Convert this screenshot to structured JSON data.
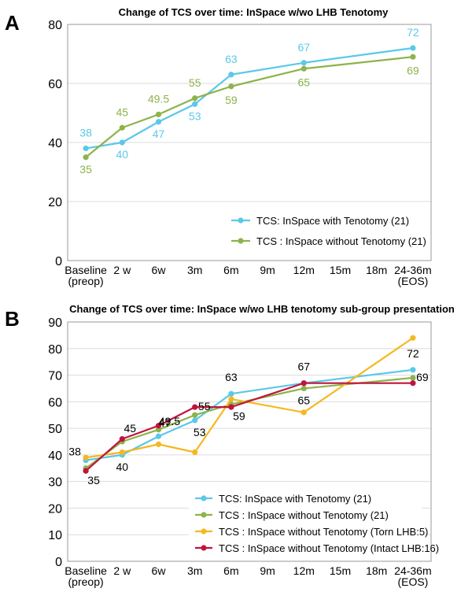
{
  "panel_a_letter": "A",
  "panel_b_letter": "B",
  "chart_data": [
    {
      "type": "line",
      "title": "Change of TCS over time: InSpace w/wo LHB Tenotomy",
      "categories": [
        "Baseline\n(preop)",
        "2 w",
        "6w",
        "3m",
        "6m",
        "9m",
        "12m",
        "15m",
        "18m",
        "24-36m\n(EOS)"
      ],
      "ylim": [
        0,
        80
      ],
      "yticks": [
        0,
        20,
        40,
        60,
        80
      ],
      "grid": "horizontal",
      "legend_position": "bottom-right",
      "series": [
        {
          "name": "TCS: InSpace with Tenotomy (21)",
          "color": "#5bc8e8",
          "x": [
            0,
            1,
            2,
            3,
            4,
            6,
            9
          ],
          "values": [
            38,
            40,
            47,
            53,
            63,
            67,
            72
          ],
          "labels": [
            "38",
            "40",
            "47",
            "53",
            "63",
            "67",
            "72"
          ]
        },
        {
          "name": "TCS : InSpace without Tenotomy (21)",
          "color": "#8db34a",
          "x": [
            0,
            1,
            2,
            3,
            4,
            6,
            9
          ],
          "values": [
            35,
            45,
            49.5,
            55,
            59,
            65,
            69
          ],
          "labels": [
            "35",
            "45",
            "49.5",
            "55",
            "59",
            "65",
            "69"
          ]
        }
      ]
    },
    {
      "type": "line",
      "title": "Change of TCS over time: InSpace w/wo LHB tenotomy sub-group presentation",
      "categories": [
        "Baseline\n(preop)",
        "2 w",
        "6w",
        "3m",
        "6m",
        "9m",
        "12m",
        "15m",
        "18m",
        "24-36m\n(EOS)"
      ],
      "ylim": [
        0,
        90
      ],
      "yticks": [
        0,
        10,
        20,
        30,
        40,
        50,
        60,
        70,
        80,
        90
      ],
      "grid": "horizontal",
      "legend_position": "bottom-left",
      "series": [
        {
          "name": "TCS: InSpace with Tenotomy (21)",
          "color": "#5bc8e8",
          "x": [
            0,
            1,
            2,
            3,
            4,
            6,
            9
          ],
          "values": [
            38,
            40,
            47,
            53,
            63,
            67,
            72
          ],
          "labels": [
            "38",
            "40",
            "47",
            "53",
            "63",
            "",
            "72"
          ]
        },
        {
          "name": "TCS : InSpace without Tenotomy (21)",
          "color": "#8db34a",
          "x": [
            0,
            1,
            2,
            3,
            4,
            6,
            9
          ],
          "values": [
            35,
            45,
            49.5,
            55,
            59,
            65,
            69
          ],
          "labels": [
            "35",
            "45",
            "49.5",
            "55",
            "59",
            "65",
            "69"
          ]
        },
        {
          "name": "TCS : InSpace without Tenotomy (Torn LHB:5)",
          "color": "#f5b820",
          "x": [
            0,
            1,
            2,
            3,
            4,
            6,
            9
          ],
          "values": [
            39,
            41,
            44,
            41,
            61,
            56,
            84
          ],
          "labels": []
        },
        {
          "name": "TCS : InSpace without Tenotomy (Intact LHB:16)",
          "color": "#c0143c",
          "x": [
            0,
            1,
            2,
            3,
            4,
            6,
            9
          ],
          "values": [
            34,
            46,
            51,
            58,
            58,
            67,
            67
          ],
          "labels": [
            "",
            "",
            "",
            "",
            "",
            "67",
            ""
          ]
        }
      ]
    }
  ]
}
